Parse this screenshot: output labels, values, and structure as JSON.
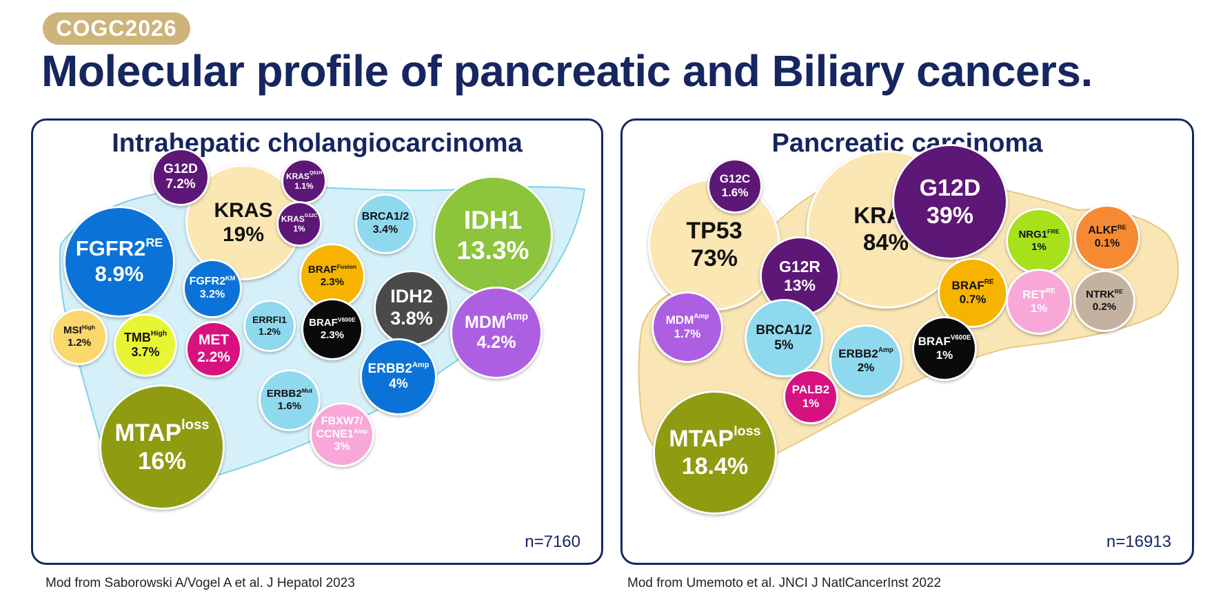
{
  "badge": "COGC2026",
  "title": "Molecular profile of pancreatic and Biliary cancers.",
  "panels": {
    "left": {
      "title": "Intrahepatic cholangiocarcinoma",
      "n": "n=7160",
      "footnote": "Mod from Saborowski A/Vogel A et al.  J  Hepatol  2023",
      "bubbles": [
        {
          "id": "kras",
          "name": "KRAS",
          "value": "19%",
          "color": "#fbe7b3",
          "text": "#111111"
        },
        {
          "id": "g12d",
          "name": "G12D",
          "value": "7.2%",
          "color": "#5d1776",
          "text": "#ffffff"
        },
        {
          "id": "kras-q61h",
          "name": "KRAS",
          "sup": "Q61H",
          "value": "1.1%",
          "color": "#5d1776",
          "text": "#ffffff"
        },
        {
          "id": "kras-g12c",
          "name": "KRAS",
          "sup": "G12C",
          "value": "1%",
          "color": "#5d1776",
          "text": "#ffffff"
        },
        {
          "id": "fgfr2-re",
          "name": "FGFR2",
          "sup": "RE",
          "value": "8.9%",
          "color": "#0b73d8",
          "text": "#ffffff"
        },
        {
          "id": "brca12",
          "name": "BRCA1/2",
          "value": "3.4%",
          "color": "#8fd9ef",
          "text": "#111111"
        },
        {
          "id": "idh1",
          "name": "IDH1",
          "value": "13.3%",
          "color": "#8cc43c",
          "text": "#ffffff"
        },
        {
          "id": "braf-fusion",
          "name": "BRAF",
          "sup": "Fusion",
          "value": "2.3%",
          "color": "#f6b400",
          "text": "#111111"
        },
        {
          "id": "fgfr2-km",
          "name": "FGFR2",
          "sup": "KM",
          "value": "3.2%",
          "color": "#0b73d8",
          "text": "#ffffff"
        },
        {
          "id": "idh2",
          "name": "IDH2",
          "value": "3.8%",
          "color": "#4a4a4a",
          "text": "#ffffff"
        },
        {
          "id": "errfi1",
          "name": "ERRFI1",
          "value": "1.2%",
          "color": "#8fd9ef",
          "text": "#111111"
        },
        {
          "id": "braf-v600e",
          "name": "BRAF",
          "sup": "V600E",
          "value": "2.3%",
          "color": "#0a0a0a",
          "text": "#ffffff"
        },
        {
          "id": "mdm-amp",
          "name": "MDM",
          "sup": "Amp",
          "value": "4.2%",
          "color": "#ad5fe2",
          "text": "#ffffff"
        },
        {
          "id": "msi-high",
          "name": "MSI",
          "sup": "High",
          "value": "1.2%",
          "color": "#fad86e",
          "text": "#111111"
        },
        {
          "id": "tmb-high",
          "name": "TMB",
          "sup": "High",
          "value": "3.7%",
          "color": "#e7f534",
          "text": "#111111"
        },
        {
          "id": "met",
          "name": "MET",
          "value": "2.2%",
          "color": "#d7117f",
          "text": "#ffffff"
        },
        {
          "id": "erbb2-amp",
          "name": "ERBB2",
          "sup": "Amp",
          "value": "4%",
          "color": "#0b73d8",
          "text": "#ffffff"
        },
        {
          "id": "erbb2-mut",
          "name": "ERBB2",
          "sup": "Mut",
          "value": "1.6%",
          "color": "#8fd9ef",
          "text": "#111111"
        },
        {
          "id": "fbxw7",
          "name": "FBXW7/",
          "name2": "CCNE1",
          "sup": "Amp",
          "value": "3%",
          "color": "#f8a8d8",
          "text": "#ffffff"
        },
        {
          "id": "mtap-loss",
          "name": "MTAP",
          "sup": "loss",
          "value": "16%",
          "color": "#8f9c12",
          "text": "#ffffff"
        }
      ]
    },
    "right": {
      "title": "Pancreatic carcinoma",
      "n": "n=16913",
      "footnote": "Mod from Umemoto et al. JNCI J NatlCancerInst 2022",
      "bubbles": [
        {
          "id": "kras",
          "name": "KRAS",
          "value": "84%",
          "color": "#fbe7b3",
          "text": "#111111"
        },
        {
          "id": "tp53",
          "name": "TP53",
          "value": "73%",
          "color": "#fbe7b3",
          "text": "#111111"
        },
        {
          "id": "g12c",
          "name": "G12C",
          "value": "1.6%",
          "color": "#5d1776",
          "text": "#ffffff"
        },
        {
          "id": "g12d",
          "name": "G12D",
          "value": "39%",
          "color": "#5d1776",
          "text": "#ffffff"
        },
        {
          "id": "g12r",
          "name": "G12R",
          "value": "13%",
          "color": "#5d1776",
          "text": "#ffffff"
        },
        {
          "id": "nrg1-fre",
          "name": "NRG1",
          "sup": "FRE",
          "value": "1%",
          "color": "#a6e11b",
          "text": "#111111"
        },
        {
          "id": "alkf-re",
          "name": "ALKF",
          "sup": "RE",
          "value": "0.1%",
          "color": "#f58a33",
          "text": "#111111"
        },
        {
          "id": "braf-re",
          "name": "BRAF",
          "sup": "RE",
          "value": "0.7%",
          "color": "#f6b400",
          "text": "#111111"
        },
        {
          "id": "ret-re",
          "name": "RET",
          "sup": "RE",
          "value": "1%",
          "color": "#f8a8d8",
          "text": "#ffffff"
        },
        {
          "id": "ntrk-re",
          "name": "NTRK",
          "sup": "RE",
          "value": "0.2%",
          "color": "#c4b2a0",
          "text": "#111111"
        },
        {
          "id": "mdm-amp",
          "name": "MDM",
          "sup": "Amp",
          "value": "1.7%",
          "color": "#ad5fe2",
          "text": "#ffffff"
        },
        {
          "id": "brca12",
          "name": "BRCA1/2",
          "value": "5%",
          "color": "#8fd9ef",
          "text": "#111111"
        },
        {
          "id": "erbb2-amp",
          "name": "ERBB2",
          "sup": "Amp",
          "value": "2%",
          "color": "#8fd9ef",
          "text": "#111111"
        },
        {
          "id": "braf-v600e",
          "name": "BRAF",
          "sup": "V600E",
          "value": "1%",
          "color": "#0a0a0a",
          "text": "#ffffff"
        },
        {
          "id": "palb2",
          "name": "PALB2",
          "value": "1%",
          "color": "#d7117f",
          "text": "#ffffff"
        },
        {
          "id": "mtap-loss",
          "name": "MTAP",
          "sup": "loss",
          "value": "18.4%",
          "color": "#8f9c12",
          "text": "#ffffff"
        }
      ]
    }
  }
}
